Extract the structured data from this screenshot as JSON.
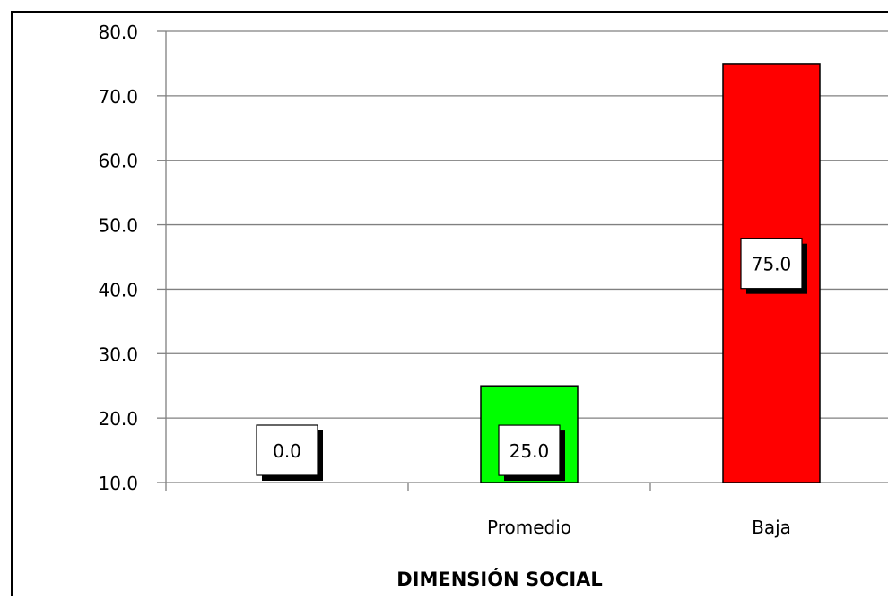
{
  "chart_data": {
    "type": "bar",
    "categories": [
      "",
      "Promedio",
      "Baja"
    ],
    "values": [
      0.0,
      25.0,
      75.0
    ],
    "data_labels": [
      "0.0",
      "25.0",
      "75.0"
    ],
    "bar_colors": [
      "#ffffff",
      "#00ff00",
      "#ff0000"
    ],
    "title": "",
    "xlabel": "DIMENSIÓN SOCIAL",
    "ylabel": "",
    "ylim": [
      0,
      80
    ],
    "y_ticks": [
      "10.0",
      "20.0",
      "30.0",
      "40.0",
      "50.0",
      "60.0",
      "70.0",
      "80.0"
    ],
    "grid": true,
    "legend": "none"
  }
}
